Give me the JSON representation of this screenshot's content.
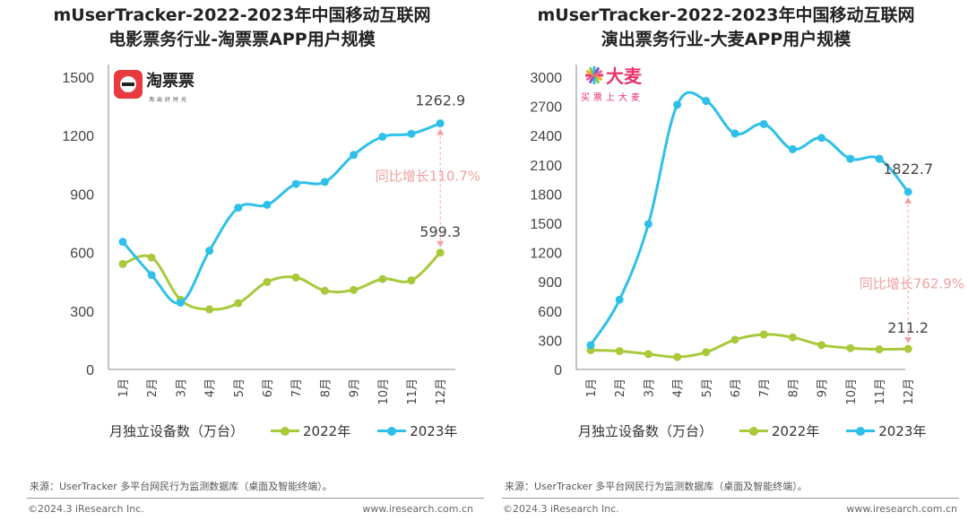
{
  "colors": {
    "y2022": "#a8c93a",
    "y2023": "#2ec0e9",
    "annotation": "#f2a0a0",
    "axis": "#888",
    "text": "#444"
  },
  "chart_data": [
    {
      "type": "line",
      "title_line1": "mUserTracker-2022-2023年中国移动互联网",
      "title_line2": "电影票务行业-淘票票APP用户规模",
      "logo_text": "淘票票",
      "logo_sub": "淘出好时光",
      "categories": [
        "1月",
        "2月",
        "3月",
        "4月",
        "5月",
        "6月",
        "7月",
        "8月",
        "9月",
        "10月",
        "11月",
        "12月"
      ],
      "ylim": [
        0,
        1500
      ],
      "yticks": [
        "0",
        "300",
        "600",
        "900",
        "1200",
        "1500"
      ],
      "series": [
        {
          "name": "2022年",
          "values": [
            541,
            574,
            358,
            308,
            340,
            449,
            472,
            404,
            408,
            464,
            457,
            599.3
          ]
        },
        {
          "name": "2023年",
          "values": [
            655,
            484,
            343,
            609,
            830,
            845,
            952,
            962,
            1101,
            1194,
            1209,
            1262.9
          ]
        }
      ],
      "data_labels": {
        "y2023_last": "1262.9",
        "y2022_last": "599.3"
      },
      "annotation": "同比增长110.7%",
      "legend_title": "月独立设备数（万台）",
      "legend_placement": "bottom",
      "grid": false
    },
    {
      "type": "line",
      "title_line1": "mUserTracker-2022-2023年中国移动互联网",
      "title_line2": "演出票务行业-大麦APP用户规模",
      "logo_text": "大麦",
      "logo_sub": "买票上大麦",
      "categories": [
        "1月",
        "2月",
        "3月",
        "4月",
        "5月",
        "6月",
        "7月",
        "8月",
        "9月",
        "10月",
        "11月",
        "12月"
      ],
      "ylim": [
        0,
        3000
      ],
      "yticks": [
        "0",
        "300",
        "600",
        "900",
        "1200",
        "1500",
        "1800",
        "2100",
        "2400",
        "2700",
        "3000"
      ],
      "series": [
        {
          "name": "2022年",
          "values": [
            198,
            189,
            158,
            128,
            177,
            305,
            359,
            329,
            250,
            219,
            207,
            211.2
          ]
        },
        {
          "name": "2023年",
          "values": [
            250,
            716,
            1492,
            2716,
            2756,
            2421,
            2518,
            2260,
            2376,
            2162,
            2162,
            1822.7
          ]
        }
      ],
      "data_labels": {
        "y2023_last": "1822.7",
        "y2022_last": "211.2"
      },
      "annotation": "同比增长762.9%",
      "legend_title": "月独立设备数（万台）",
      "legend_placement": "bottom",
      "grid": false
    }
  ],
  "footer": {
    "source": "来源：UserTracker 多平台网民行为监测数据库（桌面及智能终端）。",
    "copyright": "©2024.3 iResearch Inc.",
    "website": "www.iresearch.com.cn"
  }
}
